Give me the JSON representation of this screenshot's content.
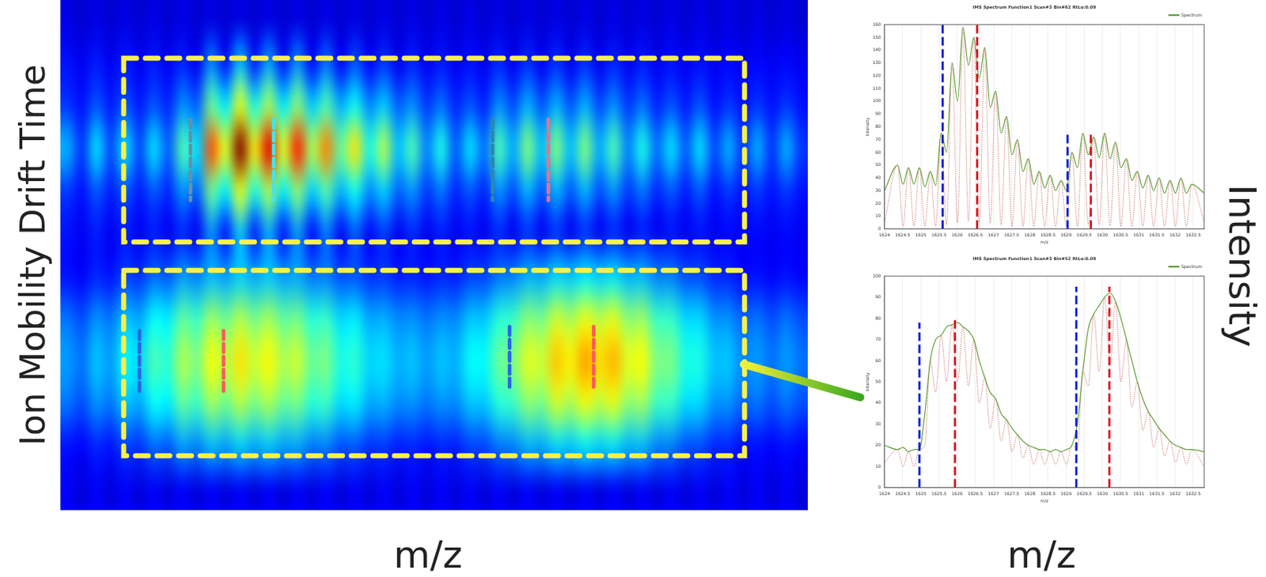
{
  "figure": {
    "x_label": "m/z",
    "y_label": "Intensity"
  },
  "chart_data": [
    {
      "type": "heatmap",
      "x_label": "m/z",
      "y_label": "Ion Mobility Drift Time",
      "tick_labels": false,
      "color_range": [
        0,
        100
      ],
      "cells": [
        [
          10,
          8,
          10,
          8,
          10,
          8,
          10,
          8,
          10,
          8,
          10,
          8,
          10,
          8,
          10,
          8,
          10,
          8,
          10,
          8,
          10,
          8,
          10,
          8,
          10,
          8,
          10,
          8,
          10,
          8,
          10,
          8,
          10,
          8,
          10,
          8,
          10,
          8,
          10,
          8,
          10,
          8,
          10,
          8,
          10,
          8,
          10,
          8,
          10,
          8,
          10,
          8
        ],
        [
          14,
          11,
          15,
          11,
          15,
          11,
          15,
          11,
          16,
          11,
          26,
          14,
          32,
          15,
          29,
          14,
          27,
          13,
          24,
          12,
          21,
          12,
          18,
          11,
          16,
          11,
          15,
          11,
          14,
          11,
          16,
          11,
          17,
          11,
          17,
          11,
          17,
          11,
          16,
          11,
          15,
          11,
          14,
          11,
          14,
          11,
          13,
          11,
          13,
          11,
          13,
          11
        ],
        [
          18,
          14,
          21,
          15,
          21,
          15,
          21,
          16,
          27,
          22,
          48,
          36,
          60,
          40,
          54,
          36,
          51,
          33,
          45,
          30,
          39,
          26,
          33,
          22,
          27,
          18,
          24,
          16,
          21,
          16,
          27,
          20,
          30,
          21,
          30,
          21,
          30,
          20,
          27,
          18,
          24,
          16,
          21,
          15,
          21,
          14,
          18,
          14,
          18,
          14,
          18,
          14
        ],
        [
          30,
          18,
          35,
          20,
          35,
          20,
          35,
          22,
          45,
          35,
          80,
          60,
          100,
          65,
          90,
          60,
          85,
          55,
          75,
          48,
          65,
          40,
          55,
          32,
          45,
          26,
          40,
          22,
          35,
          24,
          45,
          30,
          50,
          32,
          50,
          32,
          50,
          30,
          45,
          26,
          40,
          24,
          35,
          22,
          35,
          20,
          30,
          18,
          30,
          18,
          30,
          18
        ],
        [
          18,
          14,
          21,
          15,
          21,
          15,
          21,
          16,
          27,
          22,
          48,
          36,
          60,
          40,
          54,
          36,
          51,
          33,
          45,
          30,
          39,
          26,
          33,
          22,
          27,
          18,
          24,
          16,
          21,
          16,
          27,
          20,
          30,
          21,
          30,
          21,
          30,
          20,
          27,
          18,
          24,
          16,
          21,
          15,
          21,
          14,
          18,
          14,
          18,
          14,
          18,
          14
        ],
        [
          14,
          11,
          15,
          11,
          15,
          11,
          15,
          11,
          16,
          11,
          26,
          14,
          32,
          15,
          29,
          14,
          27,
          13,
          24,
          12,
          21,
          12,
          18,
          11,
          16,
          11,
          15,
          11,
          14,
          11,
          16,
          11,
          17,
          11,
          17,
          11,
          17,
          11,
          16,
          11,
          15,
          11,
          14,
          11,
          14,
          11,
          13,
          11,
          13,
          11,
          13,
          11
        ],
        [
          14,
          12,
          16,
          14,
          19,
          17,
          23,
          21,
          28,
          25,
          31,
          28,
          33,
          29,
          32,
          28,
          29,
          24,
          25,
          20,
          21,
          17,
          18,
          15,
          16,
          14,
          16,
          15,
          19,
          19,
          24,
          25,
          30,
          29,
          34,
          32,
          36,
          33,
          35,
          30,
          31,
          25,
          25,
          20,
          20,
          16,
          16,
          13,
          14,
          12,
          14,
          12
        ],
        [
          24,
          20,
          27,
          24,
          32,
          29,
          38,
          36,
          47,
          43,
          53,
          48,
          55,
          49,
          54,
          47,
          49,
          41,
          43,
          34,
          36,
          29,
          30,
          26,
          27,
          24,
          27,
          26,
          32,
          32,
          41,
          43,
          51,
          49,
          58,
          54,
          61,
          56,
          60,
          51,
          53,
          43,
          43,
          34,
          34,
          27,
          27,
          22,
          24,
          20,
          24,
          20
        ],
        [
          28,
          24,
          32,
          28,
          38,
          34,
          45,
          42,
          55,
          50,
          62,
          56,
          65,
          58,
          63,
          55,
          58,
          48,
          50,
          40,
          42,
          34,
          35,
          30,
          32,
          28,
          32,
          30,
          38,
          38,
          48,
          50,
          60,
          58,
          68,
          64,
          72,
          66,
          70,
          60,
          62,
          50,
          50,
          40,
          40,
          32,
          32,
          26,
          28,
          24,
          28,
          24
        ],
        [
          24,
          20,
          27,
          24,
          32,
          29,
          38,
          36,
          47,
          43,
          53,
          48,
          55,
          49,
          54,
          47,
          49,
          41,
          43,
          34,
          36,
          29,
          30,
          26,
          27,
          24,
          27,
          26,
          32,
          32,
          41,
          43,
          51,
          49,
          58,
          54,
          61,
          56,
          60,
          51,
          53,
          43,
          43,
          34,
          34,
          27,
          27,
          22,
          24,
          20,
          24,
          20
        ],
        [
          14,
          12,
          16,
          14,
          19,
          17,
          23,
          21,
          28,
          25,
          31,
          28,
          33,
          29,
          32,
          28,
          29,
          24,
          25,
          20,
          21,
          17,
          18,
          15,
          16,
          14,
          16,
          15,
          19,
          19,
          24,
          25,
          30,
          29,
          34,
          32,
          36,
          33,
          35,
          30,
          31,
          25,
          25,
          20,
          20,
          16,
          16,
          13,
          14,
          12,
          14,
          12
        ],
        [
          12,
          9,
          12,
          9,
          12,
          9,
          12,
          9,
          12,
          9,
          12,
          9,
          12,
          9,
          12,
          9,
          12,
          9,
          12,
          9,
          12,
          9,
          12,
          9,
          12,
          9,
          12,
          9,
          12,
          9,
          12,
          9,
          12,
          9,
          12,
          9,
          12,
          9,
          12,
          9,
          12,
          9,
          12,
          9,
          12,
          9,
          12,
          9,
          12,
          9,
          12,
          9
        ]
      ]
    },
    {
      "type": "line",
      "title": "IMS Spectrum Function1 Scan#3 Bin#62 RtLo:0.09",
      "x_label": "m/z",
      "y_label": "Intensity",
      "x": [
        1624,
        1624.36,
        1624.51,
        1624.66,
        1624.81,
        1624.96,
        1625.11,
        1625.26,
        1625.41,
        1625.56,
        1625.71,
        1625.86,
        1626.01,
        1626.16,
        1626.31,
        1626.46,
        1626.61,
        1626.76,
        1626.91,
        1627.06,
        1627.21,
        1627.36,
        1627.51,
        1627.66,
        1627.81,
        1627.96,
        1628.11,
        1628.26,
        1628.41,
        1628.56,
        1628.71,
        1628.86,
        1629.01,
        1629.16,
        1629.31,
        1629.46,
        1629.61,
        1629.76,
        1629.91,
        1630.06,
        1630.21,
        1630.36,
        1630.51,
        1630.66,
        1630.81,
        1630.96,
        1631.11,
        1631.26,
        1631.41,
        1631.56,
        1631.71,
        1631.86,
        1632.01,
        1632.16,
        1632.31,
        1632.46,
        1632.8
      ],
      "series": [
        {
          "name": "Spectrum",
          "color": "#5b9a2f",
          "values": [
            30,
            50,
            35,
            48,
            35,
            48,
            33,
            45,
            34,
            75,
            60,
            130,
            100,
            158,
            128,
            150,
            118,
            142,
            95,
            108,
            75,
            88,
            58,
            70,
            45,
            55,
            35,
            45,
            32,
            42,
            30,
            38,
            30,
            60,
            48,
            75,
            58,
            72,
            56,
            75,
            55,
            68,
            48,
            55,
            38,
            45,
            32,
            42,
            30,
            40,
            28,
            38,
            28,
            40,
            28,
            35,
            28
          ]
        },
        {
          "color": "#c0504d",
          "line_style": "dotted",
          "values": [
            5,
            50,
            2,
            48,
            2,
            48,
            2,
            45,
            2,
            75,
            3,
            130,
            5,
            158,
            6,
            150,
            5,
            142,
            4,
            108,
            3,
            88,
            2,
            70,
            2,
            55,
            2,
            45,
            2,
            42,
            2,
            38,
            2,
            60,
            2,
            75,
            3,
            72,
            3,
            75,
            2,
            68,
            2,
            55,
            2,
            45,
            2,
            42,
            2,
            40,
            2,
            38,
            2,
            40,
            2,
            35,
            5
          ]
        }
      ],
      "xlim": [
        1624,
        1632.8
      ],
      "xticks": [
        1624,
        1624.5,
        1625,
        1625.5,
        1626,
        1626.5,
        1627,
        1627.5,
        1628,
        1628.5,
        1629,
        1629.5,
        1630,
        1630.5,
        1631,
        1631.5,
        1632,
        1632.5
      ],
      "ylim": [
        0,
        160
      ],
      "yticks": [
        0,
        10,
        20,
        30,
        40,
        50,
        60,
        70,
        80,
        90,
        100,
        110,
        120,
        130,
        140,
        150,
        160
      ],
      "grid": true,
      "legend": "upper right",
      "vlines": [
        {
          "x": 1625.6,
          "y": 160,
          "color": "#0a1fd6"
        },
        {
          "x": 1626.55,
          "y": 160,
          "color": "#e0141e"
        },
        {
          "x": 1629.04,
          "y": 75,
          "color": "#0a1fd6"
        },
        {
          "x": 1629.68,
          "y": 75,
          "color": "#e0141e"
        }
      ]
    },
    {
      "type": "line",
      "title": "IMS Spectrum Function1 Scan#3 Bin#52 RtLo:0.09",
      "x_label": "m/z",
      "y_label": "Intensity",
      "x": [
        1624,
        1624.36,
        1624.51,
        1624.66,
        1624.81,
        1624.96,
        1625.11,
        1625.26,
        1625.41,
        1625.56,
        1625.71,
        1625.86,
        1626.01,
        1626.16,
        1626.31,
        1626.46,
        1626.61,
        1626.76,
        1626.91,
        1627.06,
        1627.21,
        1627.36,
        1627.51,
        1627.66,
        1627.81,
        1627.96,
        1628.11,
        1628.26,
        1628.41,
        1628.56,
        1628.71,
        1628.86,
        1629.01,
        1629.16,
        1629.31,
        1629.46,
        1629.61,
        1629.76,
        1629.91,
        1630.06,
        1630.21,
        1630.36,
        1630.51,
        1630.66,
        1630.81,
        1630.96,
        1631.11,
        1631.26,
        1631.41,
        1631.56,
        1631.71,
        1631.86,
        1632.01,
        1632.16,
        1632.31,
        1632.46,
        1632.8
      ],
      "series": [
        {
          "name": "Spectrum",
          "color": "#5b9a2f",
          "values": [
            20,
            18,
            19,
            17,
            18,
            18,
            35,
            60,
            70,
            72,
            76,
            77,
            78,
            76,
            74,
            70,
            60,
            52,
            45,
            42,
            35,
            32,
            28,
            25,
            22,
            20,
            19,
            18,
            18,
            17,
            18,
            17,
            18,
            20,
            30,
            55,
            75,
            82,
            86,
            90,
            92,
            88,
            80,
            70,
            60,
            50,
            42,
            36,
            32,
            28,
            25,
            22,
            20,
            19,
            18,
            18,
            17
          ]
        },
        {
          "color": "#c0504d",
          "line_style": "dotted",
          "values": [
            12,
            18,
            10,
            17,
            10,
            18,
            20,
            60,
            45,
            72,
            50,
            77,
            50,
            76,
            48,
            70,
            40,
            52,
            28,
            42,
            22,
            32,
            17,
            25,
            14,
            20,
            11,
            18,
            11,
            17,
            11,
            17,
            11,
            20,
            18,
            55,
            48,
            82,
            55,
            90,
            58,
            88,
            50,
            70,
            38,
            50,
            27,
            36,
            19,
            28,
            15,
            22,
            12,
            19,
            11,
            18,
            10
          ]
        }
      ],
      "xlim": [
        1624,
        1632.8
      ],
      "xticks": [
        1624,
        1624.5,
        1625,
        1625.5,
        1626,
        1626.5,
        1627,
        1627.5,
        1628,
        1628.5,
        1629,
        1629.5,
        1630,
        1630.5,
        1631,
        1631.5,
        1632,
        1632.5
      ],
      "ylim": [
        0,
        100
      ],
      "yticks": [
        0,
        10,
        20,
        30,
        40,
        50,
        60,
        70,
        80,
        90,
        100
      ],
      "grid": true,
      "legend": "upper right",
      "vlines": [
        {
          "x": 1624.96,
          "y": 78,
          "color": "#0a1fd6"
        },
        {
          "x": 1625.94,
          "y": 80,
          "color": "#e0141e"
        },
        {
          "x": 1629.28,
          "y": 95,
          "color": "#0a1fd6"
        },
        {
          "x": 1630.19,
          "y": 95,
          "color": "#e0141e"
        }
      ]
    }
  ]
}
